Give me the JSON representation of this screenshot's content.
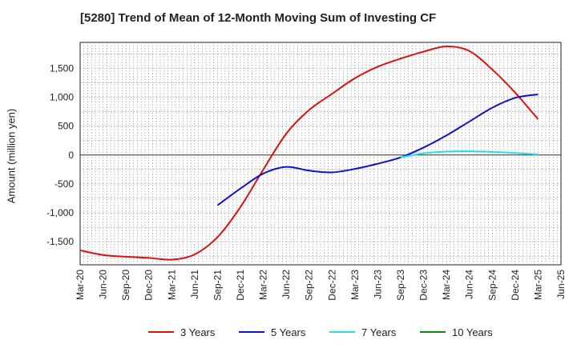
{
  "chart_data": {
    "type": "line",
    "title": "[5280]  Trend of Mean of 12-Month Moving Sum of Investing CF",
    "ylabel": "Amount (million yen)",
    "xlabel": "",
    "ylim": [
      -1900,
      1950
    ],
    "y_ticks": [
      "1,500",
      "1,000",
      "500",
      "0",
      "-500",
      "-1,000",
      "-1,500"
    ],
    "y_tick_values": [
      1500,
      1000,
      500,
      0,
      -500,
      -1000,
      -1500
    ],
    "x_ticks": [
      "Mar-20",
      "Jun-20",
      "Sep-20",
      "Dec-20",
      "Mar-21",
      "Jun-21",
      "Sep-21",
      "Dec-21",
      "Mar-22",
      "Jun-22",
      "Sep-22",
      "Dec-22",
      "Mar-23",
      "Jun-23",
      "Sep-23",
      "Dec-23",
      "Mar-24",
      "Jun-24",
      "Sep-24",
      "Dec-24",
      "Mar-25",
      "Jun-25"
    ],
    "grid": true,
    "legend_position": "bottom",
    "series": [
      {
        "name": "3 Years",
        "color": "#dd1111",
        "x": [
          "Mar-20",
          "Jun-20",
          "Sep-20",
          "Dec-20",
          "Mar-21",
          "Jun-21",
          "Sep-21",
          "Dec-21",
          "Mar-22",
          "Jun-22",
          "Sep-22",
          "Dec-22",
          "Mar-23",
          "Jun-23",
          "Sep-23",
          "Dec-23",
          "Mar-24",
          "Jun-24",
          "Sep-24",
          "Dec-24",
          "Mar-25"
        ],
        "values": [
          -1650,
          -1730,
          -1760,
          -1780,
          -1810,
          -1720,
          -1420,
          -900,
          -250,
          370,
          780,
          1060,
          1330,
          1530,
          1670,
          1790,
          1880,
          1800,
          1480,
          1080,
          620
        ]
      },
      {
        "name": "5 Years",
        "color": "#1111cc",
        "x": [
          "Sep-21",
          "Dec-21",
          "Mar-22",
          "Jun-22",
          "Sep-22",
          "Dec-22",
          "Mar-23",
          "Jun-23",
          "Sep-23",
          "Dec-23",
          "Mar-24",
          "Jun-24",
          "Sep-24",
          "Dec-24",
          "Mar-25"
        ],
        "values": [
          -870,
          -580,
          -320,
          -205,
          -270,
          -300,
          -240,
          -150,
          -40,
          130,
          340,
          580,
          820,
          990,
          1050
        ]
      },
      {
        "name": "7 Years",
        "color": "#22e0e0",
        "x": [
          "Sep-23",
          "Dec-23",
          "Mar-24",
          "Jun-24",
          "Sep-24",
          "Dec-24",
          "Mar-25"
        ],
        "values": [
          -40,
          30,
          60,
          65,
          55,
          35,
          10
        ]
      },
      {
        "name": "10 Years",
        "color": "#118811",
        "x": [],
        "values": []
      }
    ]
  }
}
